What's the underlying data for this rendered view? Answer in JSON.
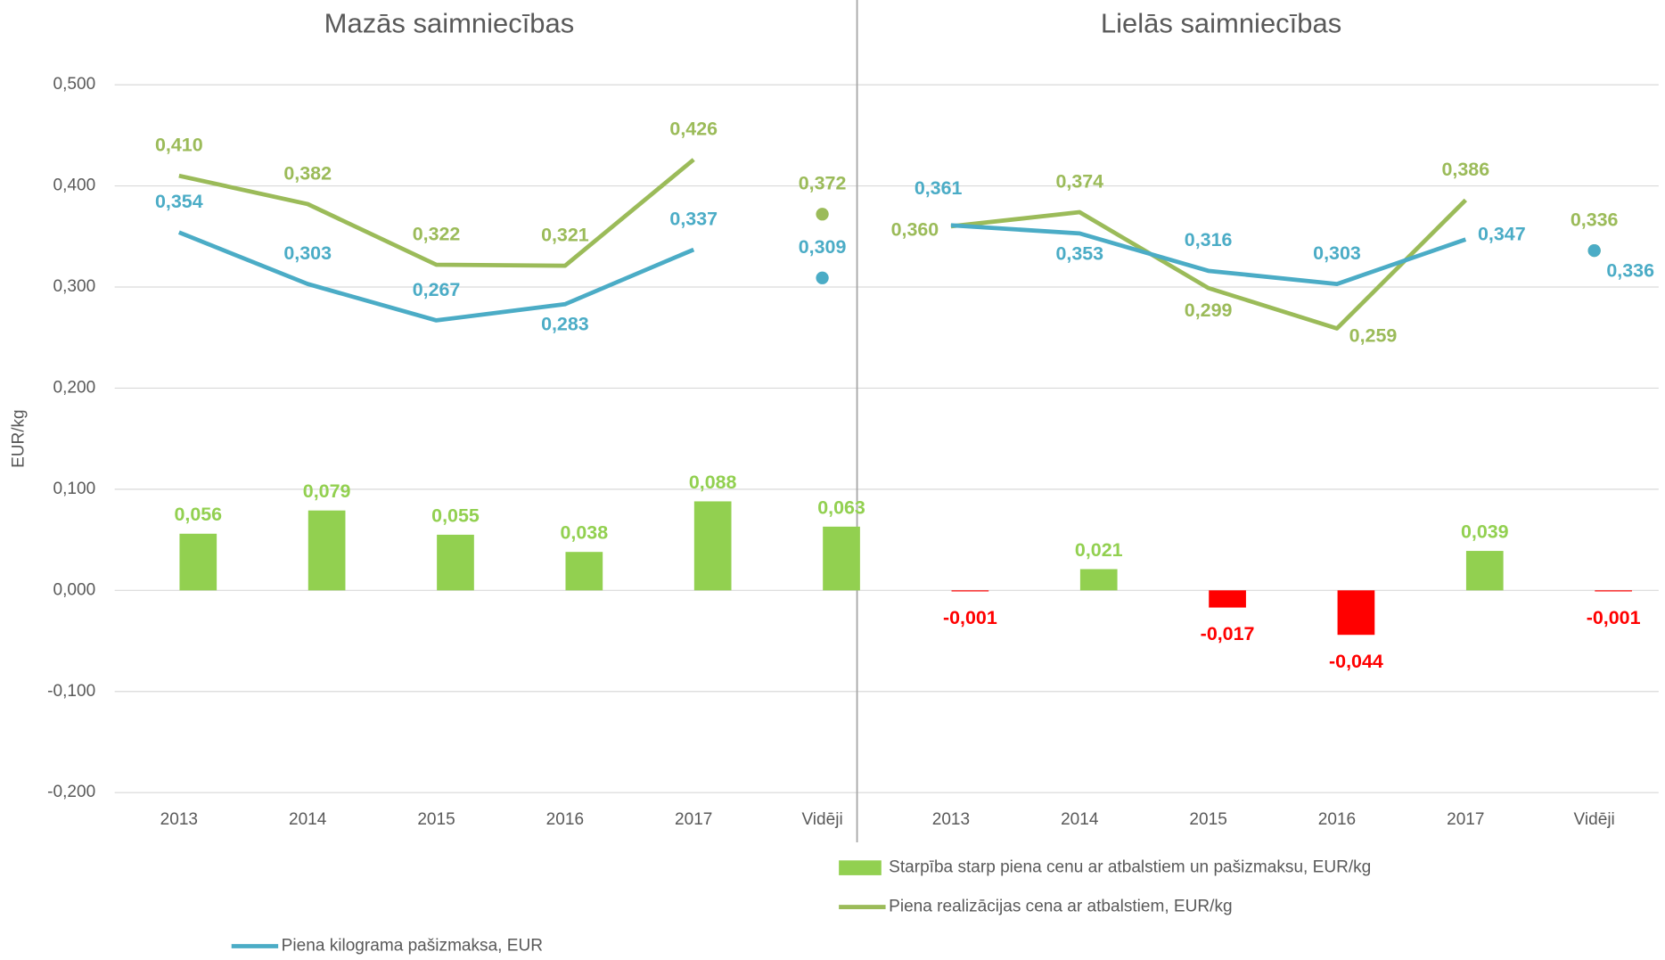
{
  "chart_data": {
    "type": "combo",
    "ylabel": "EUR/kg",
    "ylim": [
      -0.2,
      0.5
    ],
    "yticks": [
      {
        "value": -0.2,
        "label": "-0,200"
      },
      {
        "value": -0.1,
        "label": "-0,100"
      },
      {
        "value": 0,
        "label": "0,000"
      },
      {
        "value": 0.1,
        "label": "0,100"
      },
      {
        "value": 0.2,
        "label": "0,200"
      },
      {
        "value": 0.3,
        "label": "0,300"
      },
      {
        "value": 0.4,
        "label": "0,400"
      },
      {
        "value": 0.5,
        "label": "0,500"
      }
    ],
    "grid": true,
    "panels": [
      {
        "title": "Mazās saimniecības",
        "categories": [
          "2013",
          "2014",
          "2015",
          "2016",
          "2017",
          "Vidēji"
        ]
      },
      {
        "title": "Lielās saimniecības",
        "categories": [
          "2013",
          "2014",
          "2015",
          "2016",
          "2017",
          "Vidēji"
        ]
      }
    ],
    "series": [
      {
        "name": "Starpība starp piena cenu ar atbalstiem un pašizmaksu, EUR/kg",
        "type": "bar",
        "color": "#92d050",
        "negative_color": "#ff0000",
        "values": [
          0.056,
          0.079,
          0.055,
          0.038,
          0.088,
          0.063,
          -0.001,
          0.021,
          -0.017,
          -0.044,
          0.039,
          -0.001
        ],
        "value_labels": [
          "0,056",
          "0,079",
          "0,055",
          "0,038",
          "0,088",
          "0,063",
          "-0,001",
          "0,021",
          "-0,017",
          "-0,044",
          "0,039",
          "-0,001"
        ]
      },
      {
        "name": "Piena realizācijas cena ar atbalstiem, EUR/kg",
        "type": "line",
        "color": "#9bbb59",
        "values": [
          0.41,
          0.382,
          0.322,
          0.321,
          0.426,
          0.372,
          0.36,
          0.374,
          0.299,
          0.259,
          0.386,
          0.336
        ],
        "value_labels": [
          "0,410",
          "0,382",
          "0,322",
          "0,321",
          "0,426",
          "0,372",
          "0,360",
          "0,374",
          "0,299",
          "0,259",
          "0,386",
          "0,336"
        ]
      },
      {
        "name": "Piena kilograma pašizmaksa, EUR",
        "type": "line",
        "color": "#4bacc6",
        "values": [
          0.354,
          0.303,
          0.267,
          0.283,
          0.337,
          0.309,
          0.361,
          0.353,
          0.316,
          0.303,
          0.347,
          0.336
        ],
        "value_labels": [
          "0,354",
          "0,303",
          "0,267",
          "0,283",
          "0,337",
          "0,309",
          "0,361",
          "0,353",
          "0,316",
          "0,303",
          "0,347",
          "0,336"
        ]
      }
    ]
  }
}
